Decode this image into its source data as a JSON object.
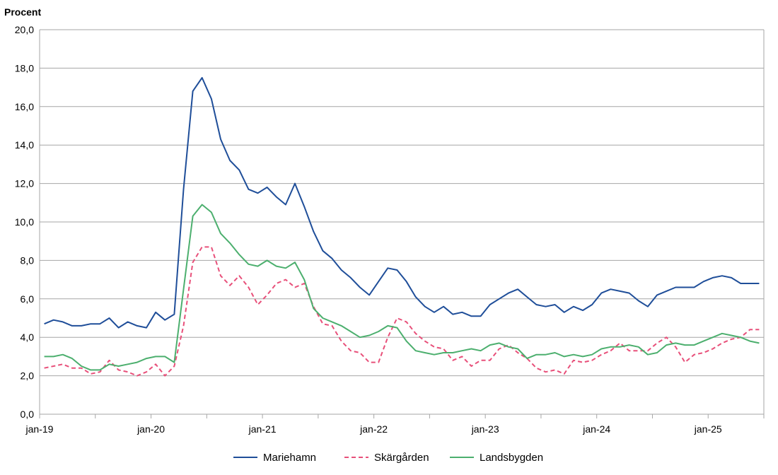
{
  "chart_data": {
    "type": "line",
    "title": "",
    "ylabel": "Procent",
    "xlabel": "",
    "ylim": [
      0,
      20
    ],
    "ytick_step": 2,
    "ytick_labels": [
      "0,0",
      "2,0",
      "4,0",
      "6,0",
      "8,0",
      "10,0",
      "12,0",
      "14,0",
      "16,0",
      "18,0",
      "20,0"
    ],
    "x_tick_labels": [
      {
        "index": 0,
        "label": "jan-19"
      },
      {
        "index": 12,
        "label": "jan-20"
      },
      {
        "index": 24,
        "label": "jan-21"
      },
      {
        "index": 36,
        "label": "jan-22"
      },
      {
        "index": 48,
        "label": "jan-23"
      },
      {
        "index": 60,
        "label": "jan-24"
      },
      {
        "index": 72,
        "label": "jan-25"
      }
    ],
    "x_minor_tick_step": 6,
    "period_start": "2019-01",
    "period_end": "2025-05",
    "grid": true,
    "legend_position": "bottom",
    "series": [
      {
        "name": "Mariehamn",
        "color": "#1f4e99",
        "dash": "solid",
        "values": [
          4.7,
          4.9,
          4.8,
          4.6,
          4.6,
          4.7,
          4.7,
          5.0,
          4.5,
          4.8,
          4.6,
          4.5,
          5.3,
          4.9,
          5.2,
          11.7,
          16.8,
          17.5,
          16.4,
          14.3,
          13.2,
          12.7,
          11.7,
          11.5,
          11.8,
          11.3,
          10.9,
          12.0,
          10.8,
          9.5,
          8.5,
          8.1,
          7.5,
          7.1,
          6.6,
          6.2,
          6.9,
          7.6,
          7.5,
          6.9,
          6.1,
          5.6,
          5.3,
          5.6,
          5.2,
          5.3,
          5.1,
          5.1,
          5.7,
          6.0,
          6.3,
          6.5,
          6.1,
          5.7,
          5.6,
          5.7,
          5.3,
          5.6,
          5.4,
          5.7,
          6.3,
          6.5,
          6.4,
          6.3,
          5.9,
          5.6,
          6.2,
          6.4,
          6.6,
          6.6,
          6.6,
          6.9,
          7.1,
          7.2,
          7.1,
          6.8,
          6.8,
          6.8
        ]
      },
      {
        "name": "Skärgården",
        "color": "#e8507a",
        "dash": "dashed",
        "values": [
          2.4,
          2.5,
          2.6,
          2.4,
          2.4,
          2.1,
          2.2,
          2.8,
          2.3,
          2.2,
          2.0,
          2.2,
          2.6,
          2.0,
          2.5,
          4.6,
          7.9,
          8.7,
          8.7,
          7.2,
          6.7,
          7.2,
          6.6,
          5.7,
          6.2,
          6.8,
          7.0,
          6.6,
          6.8,
          5.6,
          4.7,
          4.6,
          3.8,
          3.3,
          3.2,
          2.7,
          2.7,
          4.0,
          5.0,
          4.8,
          4.2,
          3.8,
          3.5,
          3.4,
          2.8,
          3.0,
          2.5,
          2.8,
          2.8,
          3.4,
          3.6,
          3.2,
          2.9,
          2.4,
          2.2,
          2.3,
          2.1,
          2.8,
          2.7,
          2.8,
          3.1,
          3.3,
          3.7,
          3.3,
          3.3,
          3.3,
          3.7,
          4.0,
          3.5,
          2.7,
          3.1,
          3.2,
          3.4,
          3.7,
          3.9,
          4.0,
          4.4,
          4.4
        ]
      },
      {
        "name": "Landsbygden",
        "color": "#4caf6e",
        "dash": "solid",
        "values": [
          3.0,
          3.0,
          3.1,
          2.9,
          2.5,
          2.3,
          2.3,
          2.6,
          2.5,
          2.6,
          2.7,
          2.9,
          3.0,
          3.0,
          2.7,
          6.5,
          10.3,
          10.9,
          10.5,
          9.4,
          8.9,
          8.3,
          7.8,
          7.7,
          8.0,
          7.7,
          7.6,
          7.9,
          7.0,
          5.5,
          5.0,
          4.8,
          4.6,
          4.3,
          4.0,
          4.1,
          4.3,
          4.6,
          4.5,
          3.8,
          3.3,
          3.2,
          3.1,
          3.2,
          3.2,
          3.3,
          3.4,
          3.3,
          3.6,
          3.7,
          3.5,
          3.4,
          2.9,
          3.1,
          3.1,
          3.2,
          3.0,
          3.1,
          3.0,
          3.1,
          3.4,
          3.5,
          3.5,
          3.6,
          3.5,
          3.1,
          3.2,
          3.6,
          3.7,
          3.6,
          3.6,
          3.8,
          4.0,
          4.2,
          4.1,
          4.0,
          3.8,
          3.7
        ]
      }
    ]
  }
}
